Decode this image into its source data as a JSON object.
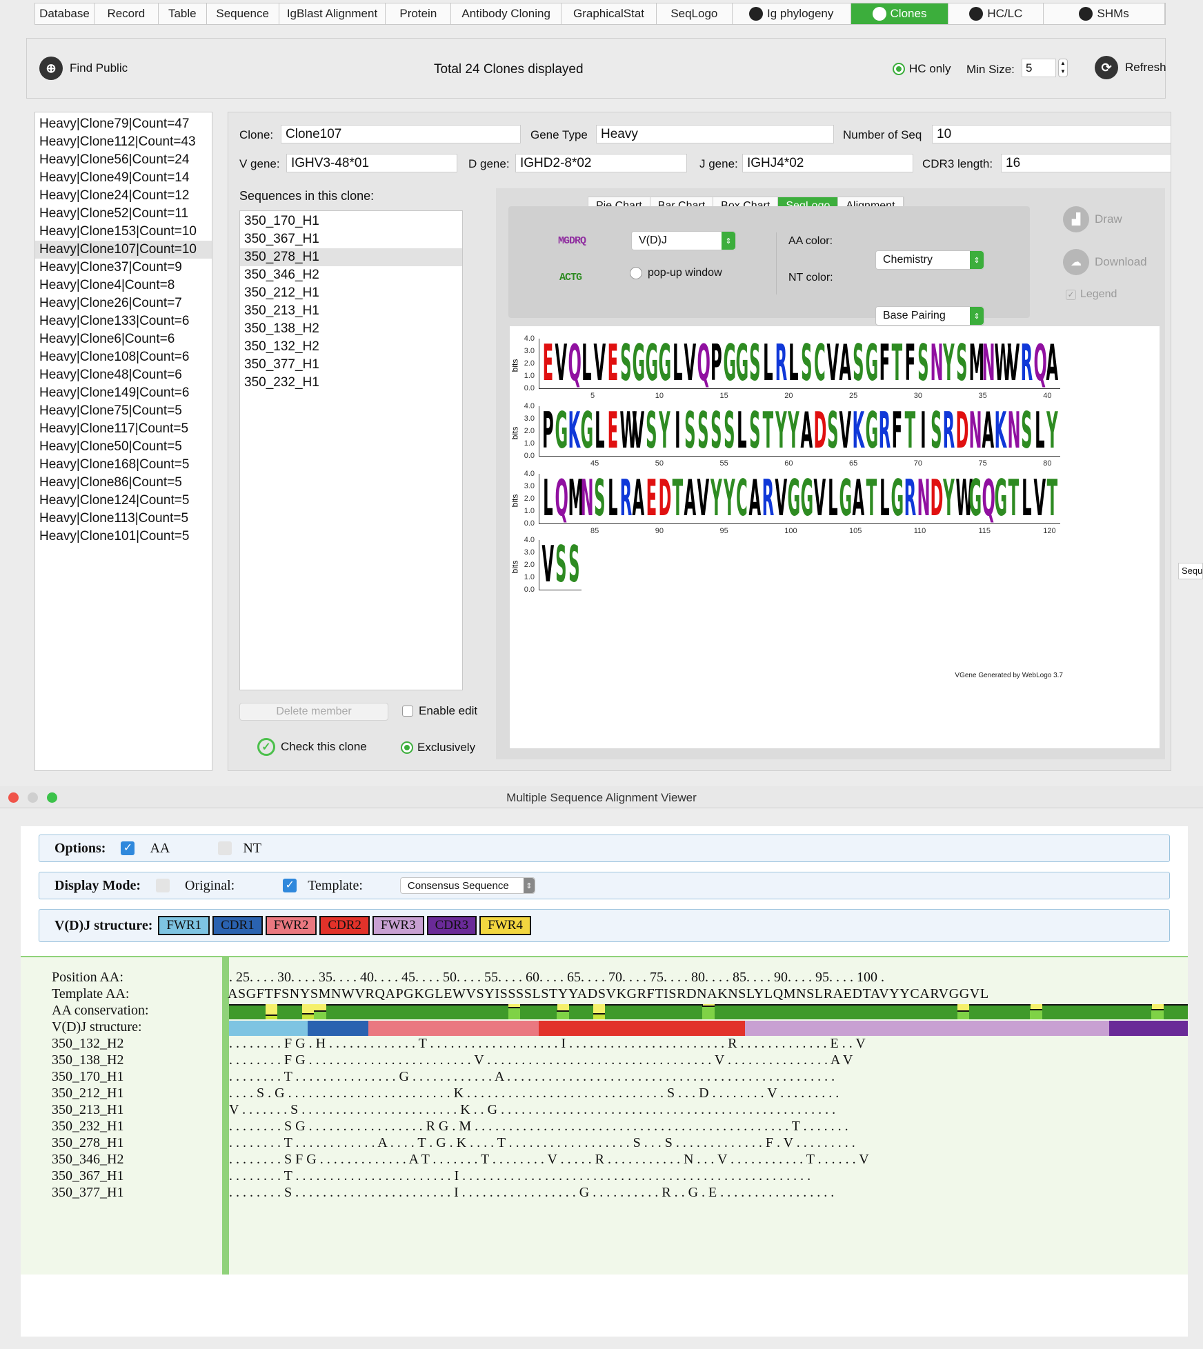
{
  "tabs": [
    {
      "label": "Database",
      "w": 86
    },
    {
      "label": "Record",
      "w": 93
    },
    {
      "label": "Table",
      "w": 70
    },
    {
      "label": "Sequence",
      "w": 105
    },
    {
      "label": "IgBlast Alignment",
      "w": 155
    },
    {
      "label": "Protein",
      "w": 95
    },
    {
      "label": "Antibody Cloning",
      "w": 160
    },
    {
      "label": "GraphicalStat",
      "w": 138
    },
    {
      "label": "SeqLogo",
      "w": 110
    },
    {
      "label": "Ig phylogeny",
      "w": 172,
      "icon": true
    },
    {
      "label": "Clones",
      "w": 142,
      "icon": true,
      "active": true
    },
    {
      "label": "HC/LC",
      "w": 138,
      "icon": true
    },
    {
      "label": "SHMs",
      "w": 176,
      "icon": true
    }
  ],
  "toolbar": {
    "find_public": "Find Public",
    "total": "Total 24 Clones displayed",
    "hc_only": "HC only",
    "min_size_label": "Min Size:",
    "min_size_value": "5",
    "refresh": "Refresh"
  },
  "clone_list": [
    "Heavy|Clone79|Count=47",
    "Heavy|Clone112|Count=43",
    "Heavy|Clone56|Count=24",
    "Heavy|Clone49|Count=14",
    "Heavy|Clone24|Count=12",
    "Heavy|Clone52|Count=11",
    "Heavy|Clone153|Count=10",
    "Heavy|Clone107|Count=10",
    "Heavy|Clone37|Count=9",
    "Heavy|Clone4|Count=8",
    "Heavy|Clone26|Count=7",
    "Heavy|Clone133|Count=6",
    "Heavy|Clone6|Count=6",
    "Heavy|Clone108|Count=6",
    "Heavy|Clone48|Count=6",
    "Heavy|Clone149|Count=6",
    "Heavy|Clone75|Count=5",
    "Heavy|Clone117|Count=5",
    "Heavy|Clone50|Count=5",
    "Heavy|Clone168|Count=5",
    "Heavy|Clone86|Count=5",
    "Heavy|Clone124|Count=5",
    "Heavy|Clone113|Count=5",
    "Heavy|Clone101|Count=5"
  ],
  "selected_clone_index": 7,
  "details": {
    "clone_label": "Clone:",
    "clone": "Clone107",
    "gene_type_label": "Gene Type",
    "gene_type": "Heavy",
    "num_seq_label": "Number of Seq",
    "num_seq": "10",
    "v_gene_label": "V gene:",
    "v_gene": "IGHV3-48*01",
    "d_gene_label": "D gene:",
    "d_gene": "IGHD2-8*02",
    "j_gene_label": "J gene:",
    "j_gene": "IGHJ4*02",
    "cdr3_label": "CDR3 length:",
    "cdr3": "16"
  },
  "sequences": {
    "title": "Sequences in this clone:",
    "items": [
      "350_170_H1",
      "350_367_H1",
      "350_278_H1",
      "350_346_H2",
      "350_212_H1",
      "350_213_H1",
      "350_138_H2",
      "350_132_H2",
      "350_377_H1",
      "350_232_H1"
    ],
    "selected_index": 2,
    "delete_member": "Delete member",
    "enable_edit": "Enable edit",
    "check_clone": "Check this clone",
    "exclusively": "Exclusively"
  },
  "chart_tabs": [
    "Pie Chart",
    "Bar Chart",
    "Box Chart",
    "SeqLogo",
    "Alignment"
  ],
  "chart_tab_active": 3,
  "logo_controls": {
    "aa_icon": "MGDRQ",
    "nt_icon": "ACTG",
    "region": "V(D)J",
    "popup": "pop-up window",
    "aa_color_label": "AA color:",
    "aa_color": "Chemistry",
    "nt_color_label": "NT color:",
    "nt_color": "Base Pairing",
    "draw": "Draw",
    "download": "Download",
    "legend": "Legend"
  },
  "colors": {
    "accent": "#3cae3c",
    "hydrophobic": "#000000",
    "polar": "#2e8b22",
    "acidic": "#e01010",
    "basic": "#1038d8",
    "amide": "#9010a0"
  },
  "seqlogo": {
    "ylabel": "bits",
    "yticks": [
      "4.0",
      "3.0",
      "2.0",
      "1.0",
      "0.0"
    ],
    "rows": [
      {
        "seq": "EVQLVESGGGLVQPGGSLRLSCVASGFTFSNYSMNWVRQA",
        "ticks": [
          "5",
          "10",
          "15",
          "20",
          "25",
          "30",
          "35",
          "40"
        ]
      },
      {
        "seq": "PGKGLEWVSYISSSSLSTYYADSVKGRFTISRDNAKNSLY",
        "ticks": [
          "45",
          "50",
          "55",
          "60",
          "65",
          "70",
          "75",
          "80"
        ]
      },
      {
        "seq": "LQMNSLRAEDTAVYYCARVGGVLGATLGRNDYWGQGTLVT",
        "ticks": [
          "85",
          "90",
          "95",
          "100",
          "105",
          "110",
          "115",
          "120"
        ]
      },
      {
        "seq": "VSS",
        "ticks": []
      }
    ],
    "footer": "VGene Generated by WebLogo 3.7"
  },
  "right_edge_label": "Sequ",
  "msa": {
    "window_title": "Multiple Sequence Alignment Viewer",
    "options_label": "Options:",
    "aa": "AA",
    "nt": "NT",
    "display_mode_label": "Display Mode:",
    "original": "Original:",
    "template": "Template:",
    "template_value": "Consensus Sequence",
    "vdj_label": "V(D)J structure:",
    "regions": [
      {
        "name": "FWR1",
        "color": "#7ec4e2"
      },
      {
        "name": "CDR1",
        "color": "#2a62b0"
      },
      {
        "name": "FWR2",
        "color": "#ea7880"
      },
      {
        "name": "CDR2",
        "color": "#e2322a"
      },
      {
        "name": "FWR3",
        "color": "#c8a0d2"
      },
      {
        "name": "CDR3",
        "color": "#6a2a98"
      },
      {
        "name": "FWR4",
        "color": "#f2d640"
      }
    ],
    "row_labels": {
      "position": "Position AA:",
      "template": "Template AA:",
      "conservation": "AA conservation:",
      "structure": "V(D)J structure:"
    },
    "position_text": ". 25. . . . 30. . . . 35. . . . 40. . . . 45. . . . 50. . . . 55. . . . 60. . . . 65. . . . 70. . . . 75. . . . 80. . . . 85. . . . 90. . . . 95. . . . 100 .",
    "template_text": "ASGFTFSNYSMNWVRQAPGKGLEWVSYISSSSLSTYYADSVKGRFTISRDNAKNSLYLQMNSLRAEDTAVYYCARVGGVL",
    "seqs": [
      {
        "name": "350_132_H2",
        "text": ". . . . . . . . F G . H . . . . . . . . . . . . . T . . . . . . . . . . . . . . . . . . . I . . . . . . . . . . . . . . . . . . . . . . . R . . . . . . . . . . . . . E . . V"
      },
      {
        "name": "350_138_H2",
        "text": ". . . . . . . . F G . . . . . . . . . . . . . . . . . . . . . . . . V . . . . . . . . . . . . . . . . . . . . . . . . . . . . . . . . . V . . . . . . . . . . . . . . . A V"
      },
      {
        "name": "350_170_H1",
        "text": ". . . . . . . . T . . . . . . . . . . . . . . . G . . . . . . . . . . . . A . . . . . . . . . . . . . . . . . . . . . . . . . . . . . . . . . . . . . . . . . . . . . . . ."
      },
      {
        "name": "350_212_H1",
        "text": ". . . . S . G . . . . . . . . . . . . . . . . . . . . . . . . K . . . . . . . . . . . . . . . . . . . . . . . . . . . . . S . . . D . . . . . . . . V . . . . . . . . ."
      },
      {
        "name": "350_213_H1",
        "text": "V . . . . . . . S . . . . . . . . . . . . . . . . . . . . . . . K . . G . . . . . . . . . . . . . . . . . . . . . . . . . . . . . . . . . . . . . . . . . . . . . . . . ."
      },
      {
        "name": "350_232_H1",
        "text": ". . . . . . . . S G . . . . . . . . . . . . . . . . . R G . M . . . . . . . . . . . . . . . . . . . . . . . . . . . . . . . . . . . . . . . . . . . . . . T . . . . . . ."
      },
      {
        "name": "350_278_H1",
        "text": ". . . . . . . . T . . . . . . . . . . . . A . . . . T . G . K . . . . T . . . . . . . . . . . . . . . . . . S . . . S . . . . . . . . . . . . . F . V . . . . . . . . ."
      },
      {
        "name": "350_346_H2",
        "text": ". . . . . . . . S F G . . . . . . . . . . . . . A T . . . . . . . T . . . . . . . . V . . . . . R . . . . . . . . . . . N . . . V . . . . . . . . . . . T . . . . . . V"
      },
      {
        "name": "350_367_H1",
        "text": ". . . . . . . . T . . . . . . . . . . . . . . . . . . . . . . . I . . . . . . . . . . . . . . . . . . . . . . . . . . . . . . . . . . . . . . . . . . . . . . . . . . ."
      },
      {
        "name": "350_377_H1",
        "text": ". . . . . . . . S . . . . . . . . . . . . . . . . . . . . . . . I . . . . . . . . . . . . . . . . . G . . . . . . . . . . R . . G . E . . . . . . . . . . . . . . . . ."
      }
    ],
    "conservation": [
      1,
      1,
      1,
      0.3,
      1,
      1,
      0.4,
      0.6,
      1,
      1,
      1,
      1,
      1,
      1,
      1,
      1,
      1,
      1,
      1,
      1,
      1,
      1,
      1,
      0.8,
      1,
      1,
      1,
      0.6,
      1,
      1,
      0.4,
      1,
      1,
      1,
      1,
      1,
      1,
      1,
      1,
      0.9,
      1,
      1,
      1,
      1,
      1,
      1,
      1,
      1,
      1,
      1,
      1,
      1,
      1,
      1,
      1,
      1,
      1,
      1,
      1,
      1,
      0.6,
      1,
      1,
      1,
      1,
      1,
      0.7,
      1,
      1,
      1,
      1,
      1,
      1,
      1,
      1,
      1,
      0.7,
      1,
      1
    ],
    "structure_spans": [
      {
        "region": "FWR1",
        "cols": 6.5
      },
      {
        "region": "CDR1",
        "cols": 5
      },
      {
        "region": "FWR2",
        "cols": 14
      },
      {
        "region": "CDR2",
        "cols": 17
      },
      {
        "region": "FWR3",
        "cols": 30
      },
      {
        "region": "CDR3",
        "cols": 6.5
      }
    ]
  }
}
